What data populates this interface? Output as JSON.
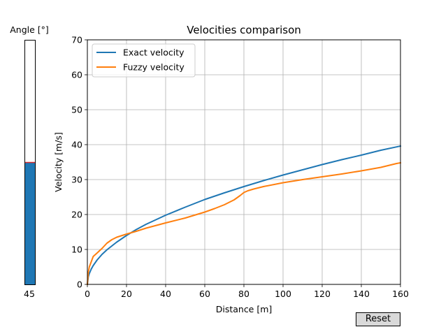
{
  "slider": {
    "label": "Angle [°]",
    "value_label": "45",
    "value": 45,
    "min": 0,
    "max": 90,
    "fill_color": "#1f77b4",
    "marker_color": "#d62728"
  },
  "reset_button": {
    "label": "Reset"
  },
  "chart_data": {
    "type": "line",
    "title": "Velocities comparison",
    "xlabel": "Distance [m]",
    "ylabel": "Velocity [m/s]",
    "xlim": [
      0,
      160
    ],
    "ylim": [
      0,
      70
    ],
    "xticks": [
      0,
      20,
      40,
      60,
      80,
      100,
      120,
      140,
      160
    ],
    "yticks": [
      0,
      10,
      20,
      30,
      40,
      50,
      60,
      70
    ],
    "grid": true,
    "legend_position": "top-left",
    "series": [
      {
        "name": "Exact velocity",
        "color": "#1f77b4",
        "x": [
          0,
          0.5,
          1,
          2,
          3,
          5,
          7.5,
          10,
          15,
          20,
          25,
          30,
          40,
          50,
          60,
          70,
          80,
          90,
          100,
          110,
          120,
          130,
          140,
          150,
          160
        ],
        "y": [
          0,
          2.2,
          3.1,
          4.4,
          5.4,
          7.0,
          8.6,
          9.9,
          12.1,
          14.0,
          15.7,
          17.2,
          19.8,
          22.1,
          24.3,
          26.2,
          28.0,
          29.7,
          31.3,
          32.8,
          34.3,
          35.7,
          37.0,
          38.4,
          39.6
        ]
      },
      {
        "name": "Fuzzy velocity",
        "color": "#ff7f0e",
        "x": [
          0,
          0.5,
          1,
          2,
          3,
          5,
          7.5,
          10,
          12.5,
          15,
          20,
          25,
          30,
          40,
          50,
          60,
          65,
          70,
          75,
          78,
          80,
          82,
          85,
          90,
          100,
          110,
          120,
          130,
          140,
          150,
          158,
          160
        ],
        "y": [
          0,
          3.5,
          5.0,
          6.5,
          8.0,
          9.0,
          10.3,
          11.8,
          12.8,
          13.5,
          14.4,
          15.2,
          16.1,
          17.6,
          19.0,
          20.7,
          21.7,
          22.8,
          24.2,
          25.4,
          26.3,
          26.8,
          27.3,
          28.0,
          29.1,
          30.0,
          30.8,
          31.6,
          32.5,
          33.5,
          34.6,
          34.8
        ]
      }
    ]
  }
}
